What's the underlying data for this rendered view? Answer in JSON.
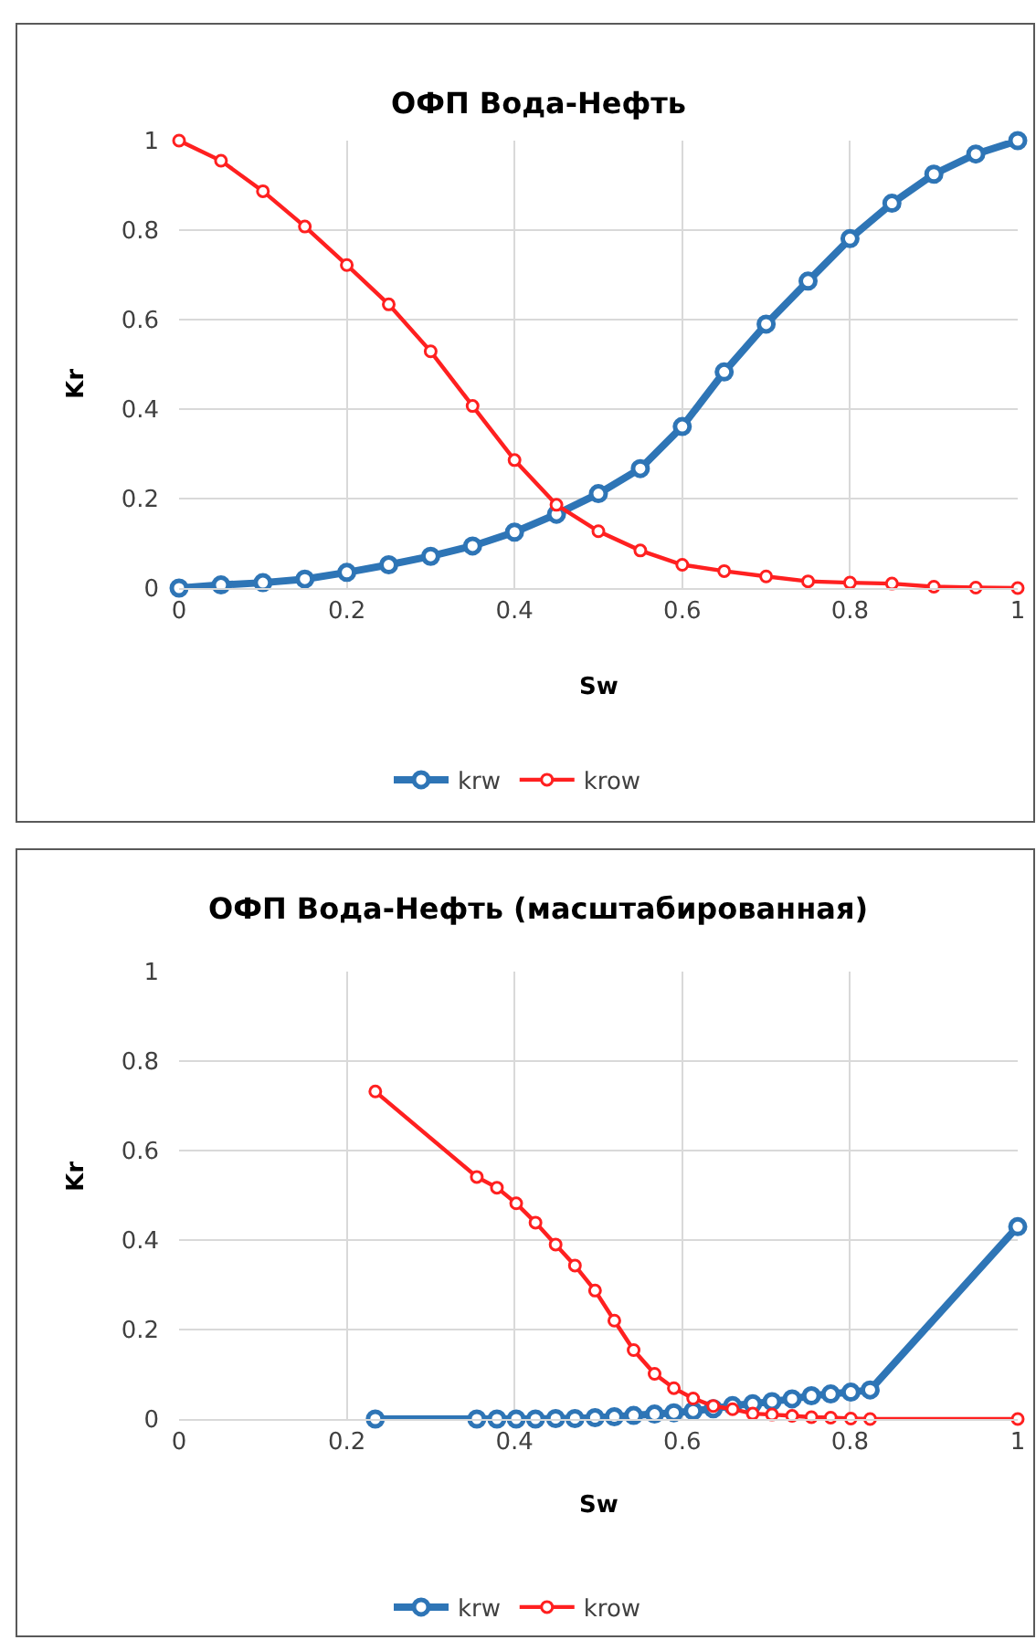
{
  "chart_data": [
    {
      "type": "line",
      "title": "ОФП Вода-Нефть",
      "xlabel": "Sw",
      "ylabel": "Kr",
      "x": [
        0,
        0.05,
        0.1,
        0.15,
        0.2,
        0.25,
        0.3,
        0.35,
        0.4,
        0.45,
        0.5,
        0.55,
        0.6,
        0.65,
        0.7,
        0.75,
        0.8,
        0.85,
        0.9,
        0.95,
        1
      ],
      "xlim": [
        0,
        1
      ],
      "xticks": [
        0,
        0.2,
        0.4,
        0.6,
        0.8,
        1
      ],
      "ylim": [
        0,
        1
      ],
      "yticks": [
        0,
        0.2,
        0.4,
        0.6,
        0.8,
        1
      ],
      "grid": true,
      "legend": "bottom",
      "marker": "circle",
      "line_style": "solid",
      "series": [
        {
          "name": "krw",
          "color": "#2e75b6",
          "values": [
            0,
            0.007,
            0.012,
            0.02,
            0.035,
            0.052,
            0.071,
            0.094,
            0.125,
            0.165,
            0.211,
            0.267,
            0.361,
            0.483,
            0.59,
            0.686,
            0.781,
            0.86,
            0.925,
            0.97,
            1.0
          ]
        },
        {
          "name": "krow",
          "color": "#ff2020",
          "values": [
            1,
            0.955,
            0.887,
            0.808,
            0.722,
            0.634,
            0.529,
            0.407,
            0.286,
            0.186,
            0.127,
            0.084,
            0.052,
            0.038,
            0.026,
            0.015,
            0.012,
            0.01,
            0.003,
            0.001,
            0
          ]
        }
      ]
    },
    {
      "type": "line",
      "title": "ОФП Вода-Нефть (масштабированная)",
      "xlabel": "Sw",
      "ylabel": "Kr",
      "x": [
        0.234,
        0.355,
        0.379,
        0.402,
        0.425,
        0.449,
        0.472,
        0.496,
        0.519,
        0.542,
        0.567,
        0.59,
        0.613,
        0.637,
        0.66,
        0.684,
        0.707,
        0.731,
        0.754,
        0.777,
        0.801,
        0.824,
        1
      ],
      "xlim": [
        0,
        1
      ],
      "xticks": [
        0,
        0.2,
        0.4,
        0.6,
        0.8,
        1
      ],
      "ylim": [
        0,
        1
      ],
      "yticks": [
        0,
        0.2,
        0.4,
        0.6,
        0.8,
        1
      ],
      "grid": true,
      "legend": "bottom",
      "marker": "circle",
      "line_style": "solid",
      "series": [
        {
          "name": "krw",
          "color": "#2e75b6",
          "values": [
            0,
            0,
            0,
            0,
            0,
            0.001,
            0.001,
            0.003,
            0.005,
            0.008,
            0.011,
            0.014,
            0.018,
            0.023,
            0.03,
            0.034,
            0.039,
            0.045,
            0.052,
            0.056,
            0.06,
            0.065,
            0.43
          ]
        },
        {
          "name": "krow",
          "color": "#ff2020",
          "values": [
            0.732,
            0.541,
            0.517,
            0.482,
            0.439,
            0.39,
            0.343,
            0.287,
            0.22,
            0.154,
            0.101,
            0.069,
            0.046,
            0.029,
            0.022,
            0.012,
            0.01,
            0.007,
            0.004,
            0.003,
            0.001,
            0,
            0
          ]
        }
      ]
    }
  ]
}
